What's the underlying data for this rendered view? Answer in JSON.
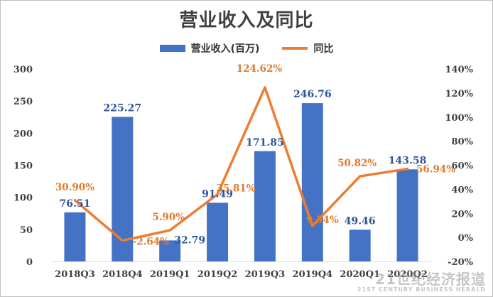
{
  "chart_data": {
    "type": "bar",
    "title": "营业收入及同比",
    "categories": [
      "2018Q3",
      "2018Q4",
      "2019Q1",
      "2019Q2",
      "2019Q3",
      "2019Q4",
      "2020Q1",
      "2020Q2"
    ],
    "series": [
      {
        "name": "营业收入(百万)",
        "type": "bar",
        "axis": "left",
        "values": [
          76.51,
          225.27,
          32.79,
          91.49,
          171.85,
          246.76,
          49.46,
          143.58
        ],
        "labels": [
          "76.51",
          "225.27",
          "32.79",
          "91.49",
          "171.85",
          "246.76",
          "49.46",
          "143.58"
        ]
      },
      {
        "name": "同比",
        "type": "line",
        "axis": "right",
        "values": [
          30.9,
          -2.64,
          5.9,
          35.81,
          124.62,
          9.54,
          50.82,
          56.94
        ],
        "labels": [
          "30.90%",
          "-2.64%",
          "5.90%",
          "35.81%",
          "124.62%",
          "9.54%",
          "50.82%",
          "56.94%"
        ]
      }
    ],
    "y_left": {
      "min": 0,
      "max": 300,
      "ticks": [
        "0",
        "50",
        "100",
        "150",
        "200",
        "250",
        "300"
      ]
    },
    "y_right": {
      "min": -20,
      "max": 140,
      "ticks": [
        "-20%",
        "0%",
        "20%",
        "40%",
        "60%",
        "80%",
        "100%",
        "120%",
        "140%"
      ]
    },
    "grid": false,
    "legend_position": "top-center",
    "colors": {
      "bar": "#4472C4",
      "line": "#ED7D31",
      "bar_label": "#2F5597",
      "line_label": "#E07A2E",
      "axis_text": "#404040"
    }
  },
  "watermark": {
    "main": "21世纪经济报道",
    "sub": "21ST CENTURY BUSINESS HERALD"
  }
}
